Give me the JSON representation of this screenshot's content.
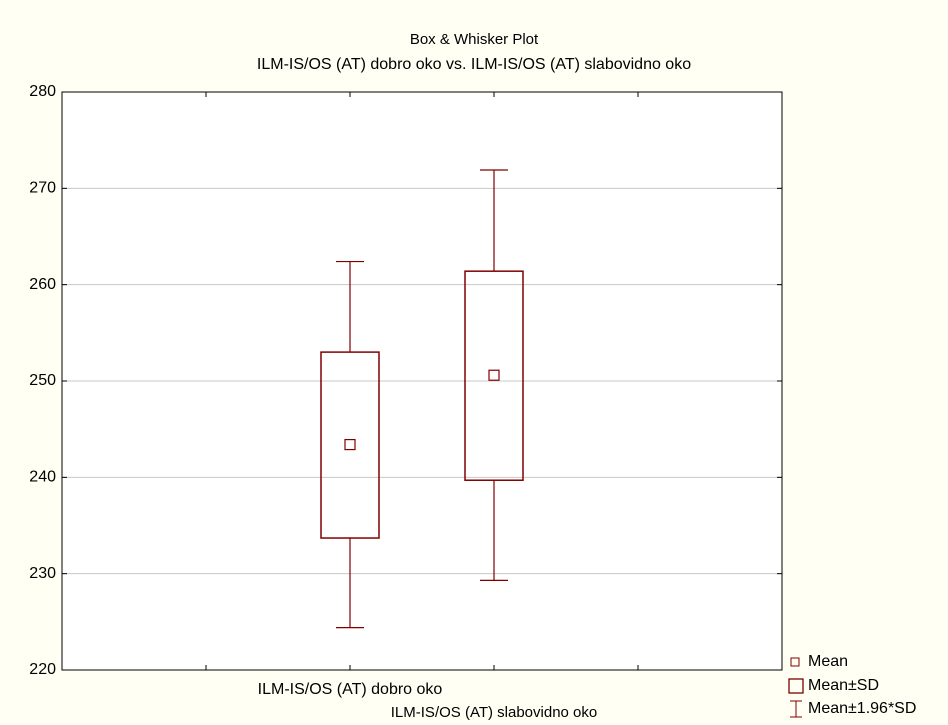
{
  "chart_data": {
    "type": "box",
    "title": "Box & Whisker Plot",
    "subtitle": "ILM-IS/OS (AT) dobro oko vs. ILM-IS/OS (AT) slabovidno oko",
    "categories": [
      "ILM-IS/OS (AT) dobro oko",
      "ILM-IS/OS (AT) slabovidno oko"
    ],
    "color": "#800000",
    "mean": [
      243.4,
      250.6
    ],
    "box_low": [
      233.7,
      239.7
    ],
    "box_high": [
      253.0,
      261.4
    ],
    "whisker_low": [
      224.4,
      229.3
    ],
    "whisker_high": [
      262.4,
      271.9
    ],
    "ylim": [
      220,
      280
    ],
    "yticks": [
      220,
      230,
      240,
      250,
      260,
      270,
      280
    ],
    "grid": true,
    "legend": [
      "Mean",
      "Mean±SD",
      "Mean±1.96*SD"
    ]
  }
}
